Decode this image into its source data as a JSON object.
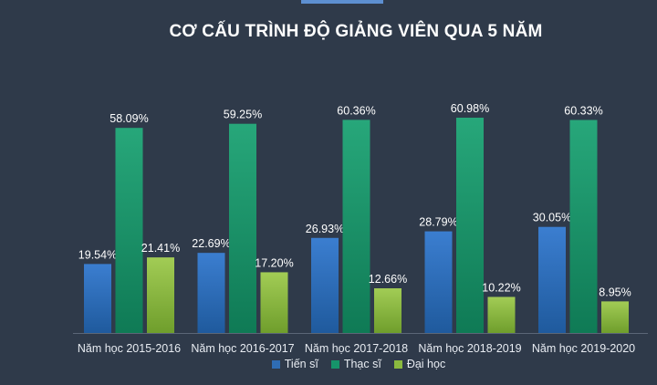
{
  "chart_data": {
    "type": "bar",
    "title": "CƠ CẤU TRÌNH ĐỘ GIẢNG VIÊN QUA 5 NĂM",
    "categories": [
      "Năm học 2015-2016",
      "Năm học 2016-2017",
      "Năm học 2017-2018",
      "Năm học 2018-2019",
      "Năm học 2019-2020"
    ],
    "series": [
      {
        "name": "Tiến sĩ",
        "values": [
          19.54,
          22.69,
          26.93,
          28.79,
          30.05
        ],
        "labels": [
          "19.54%",
          "22.69%",
          "26.93%",
          "28.79%",
          "30.05%"
        ],
        "color": "#2f6db5"
      },
      {
        "name": "Thạc sĩ",
        "values": [
          58.09,
          59.25,
          60.36,
          60.98,
          60.33
        ],
        "labels": [
          "58.09%",
          "59.25%",
          "60.36%",
          "60.98%",
          "60.33%"
        ],
        "color": "#16946a"
      },
      {
        "name": "Đại học",
        "values": [
          21.41,
          17.2,
          12.66,
          10.22,
          8.95
        ],
        "labels": [
          "21.41%",
          "17.20%",
          "12.66%",
          "10.22%",
          "8.95%"
        ],
        "color": "#8bba3f"
      }
    ],
    "ylim": [
      0,
      60.98
    ],
    "legend": "bottom",
    "grid": false
  }
}
